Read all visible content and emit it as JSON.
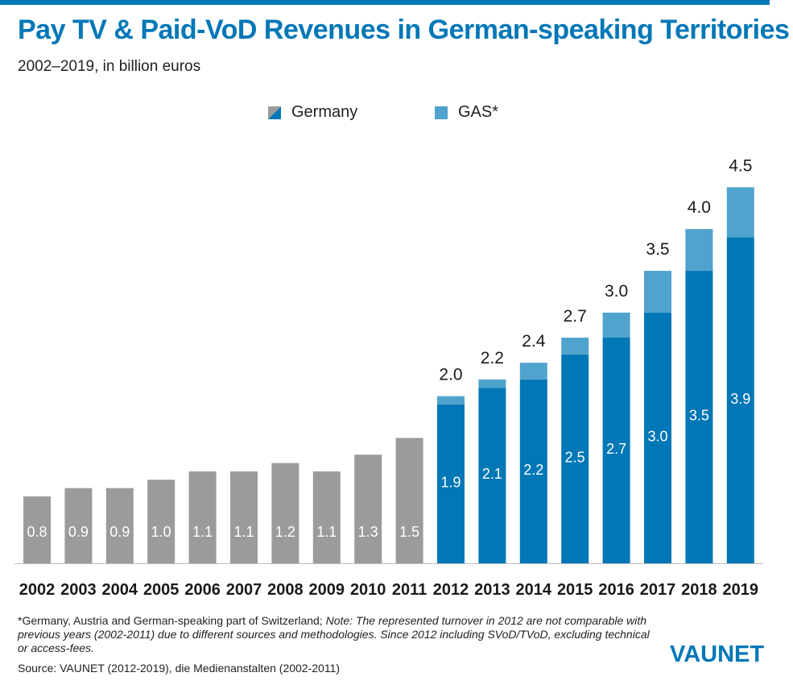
{
  "header": {
    "title": "Pay TV & Paid-VoD Revenues in German-speaking Territories",
    "subtitle": "2002–2019, in billion euros"
  },
  "legend": {
    "germany": "Germany",
    "gas": "GAS*"
  },
  "colors": {
    "germany": "#0077b6",
    "gas": "#4fa3cc",
    "historic": "#9b9b9b",
    "accent": "#0077b6"
  },
  "chart_data": {
    "type": "bar",
    "stacked": true,
    "title": "Pay TV & Paid-VoD Revenues in German-speaking Territories",
    "subtitle": "2002–2019, in billion euros",
    "xlabel": "",
    "ylabel": "",
    "ylim": [
      0,
      4.5
    ],
    "categories": [
      "2002",
      "2003",
      "2004",
      "2005",
      "2006",
      "2007",
      "2008",
      "2009",
      "2010",
      "2011",
      "2012",
      "2013",
      "2014",
      "2015",
      "2016",
      "2017",
      "2018",
      "2019"
    ],
    "historic_values": [
      0.8,
      0.9,
      0.9,
      1.0,
      1.1,
      1.1,
      1.2,
      1.1,
      1.3,
      1.5
    ],
    "historic_labels": [
      "0.8",
      "0.9",
      "0.9",
      "1.0",
      "1.1",
      "1.1",
      "1.2",
      "1.1",
      "1.3",
      "1.5"
    ],
    "series": [
      {
        "name": "Germany",
        "values": [
          null,
          null,
          null,
          null,
          null,
          null,
          null,
          null,
          null,
          null,
          1.9,
          2.1,
          2.2,
          2.5,
          2.7,
          3.0,
          3.5,
          3.9
        ],
        "labels": [
          "",
          "",
          "",
          "",
          "",
          "",
          "",
          "",
          "",
          "",
          "1.9",
          "2.1",
          "2.2",
          "2.5",
          "2.7",
          "3.0",
          "3.5",
          "3.9"
        ]
      },
      {
        "name": "GAS*",
        "values": [
          null,
          null,
          null,
          null,
          null,
          null,
          null,
          null,
          null,
          null,
          0.1,
          0.1,
          0.2,
          0.2,
          0.3,
          0.4,
          0.5,
          0.6
        ]
      }
    ],
    "totals": [
      null,
      null,
      null,
      null,
      null,
      null,
      null,
      null,
      null,
      null,
      2.0,
      2.2,
      2.4,
      2.7,
      3.0,
      3.5,
      4.0,
      4.5
    ],
    "total_labels": [
      "",
      "",
      "",
      "",
      "",
      "",
      "",
      "",
      "",
      "",
      "2.0",
      "2.2",
      "2.4",
      "2.7",
      "3.0",
      "3.5",
      "4.0",
      "4.5"
    ],
    "legend_position": "top-center"
  },
  "footnote": {
    "lead": "*Germany, Austria and German-speaking part of Switzerland;",
    "note": "Note: The represented turnover in 2012 are not comparable with previous years (2002-2011)  due to different sources and methodologies. Since 2012 including SVoD/TVoD, excluding technical or access-fees."
  },
  "source": "Source: VAUNET (2012-2019), die Medienanstalten (2002-2011)",
  "logo": "VAUNET"
}
